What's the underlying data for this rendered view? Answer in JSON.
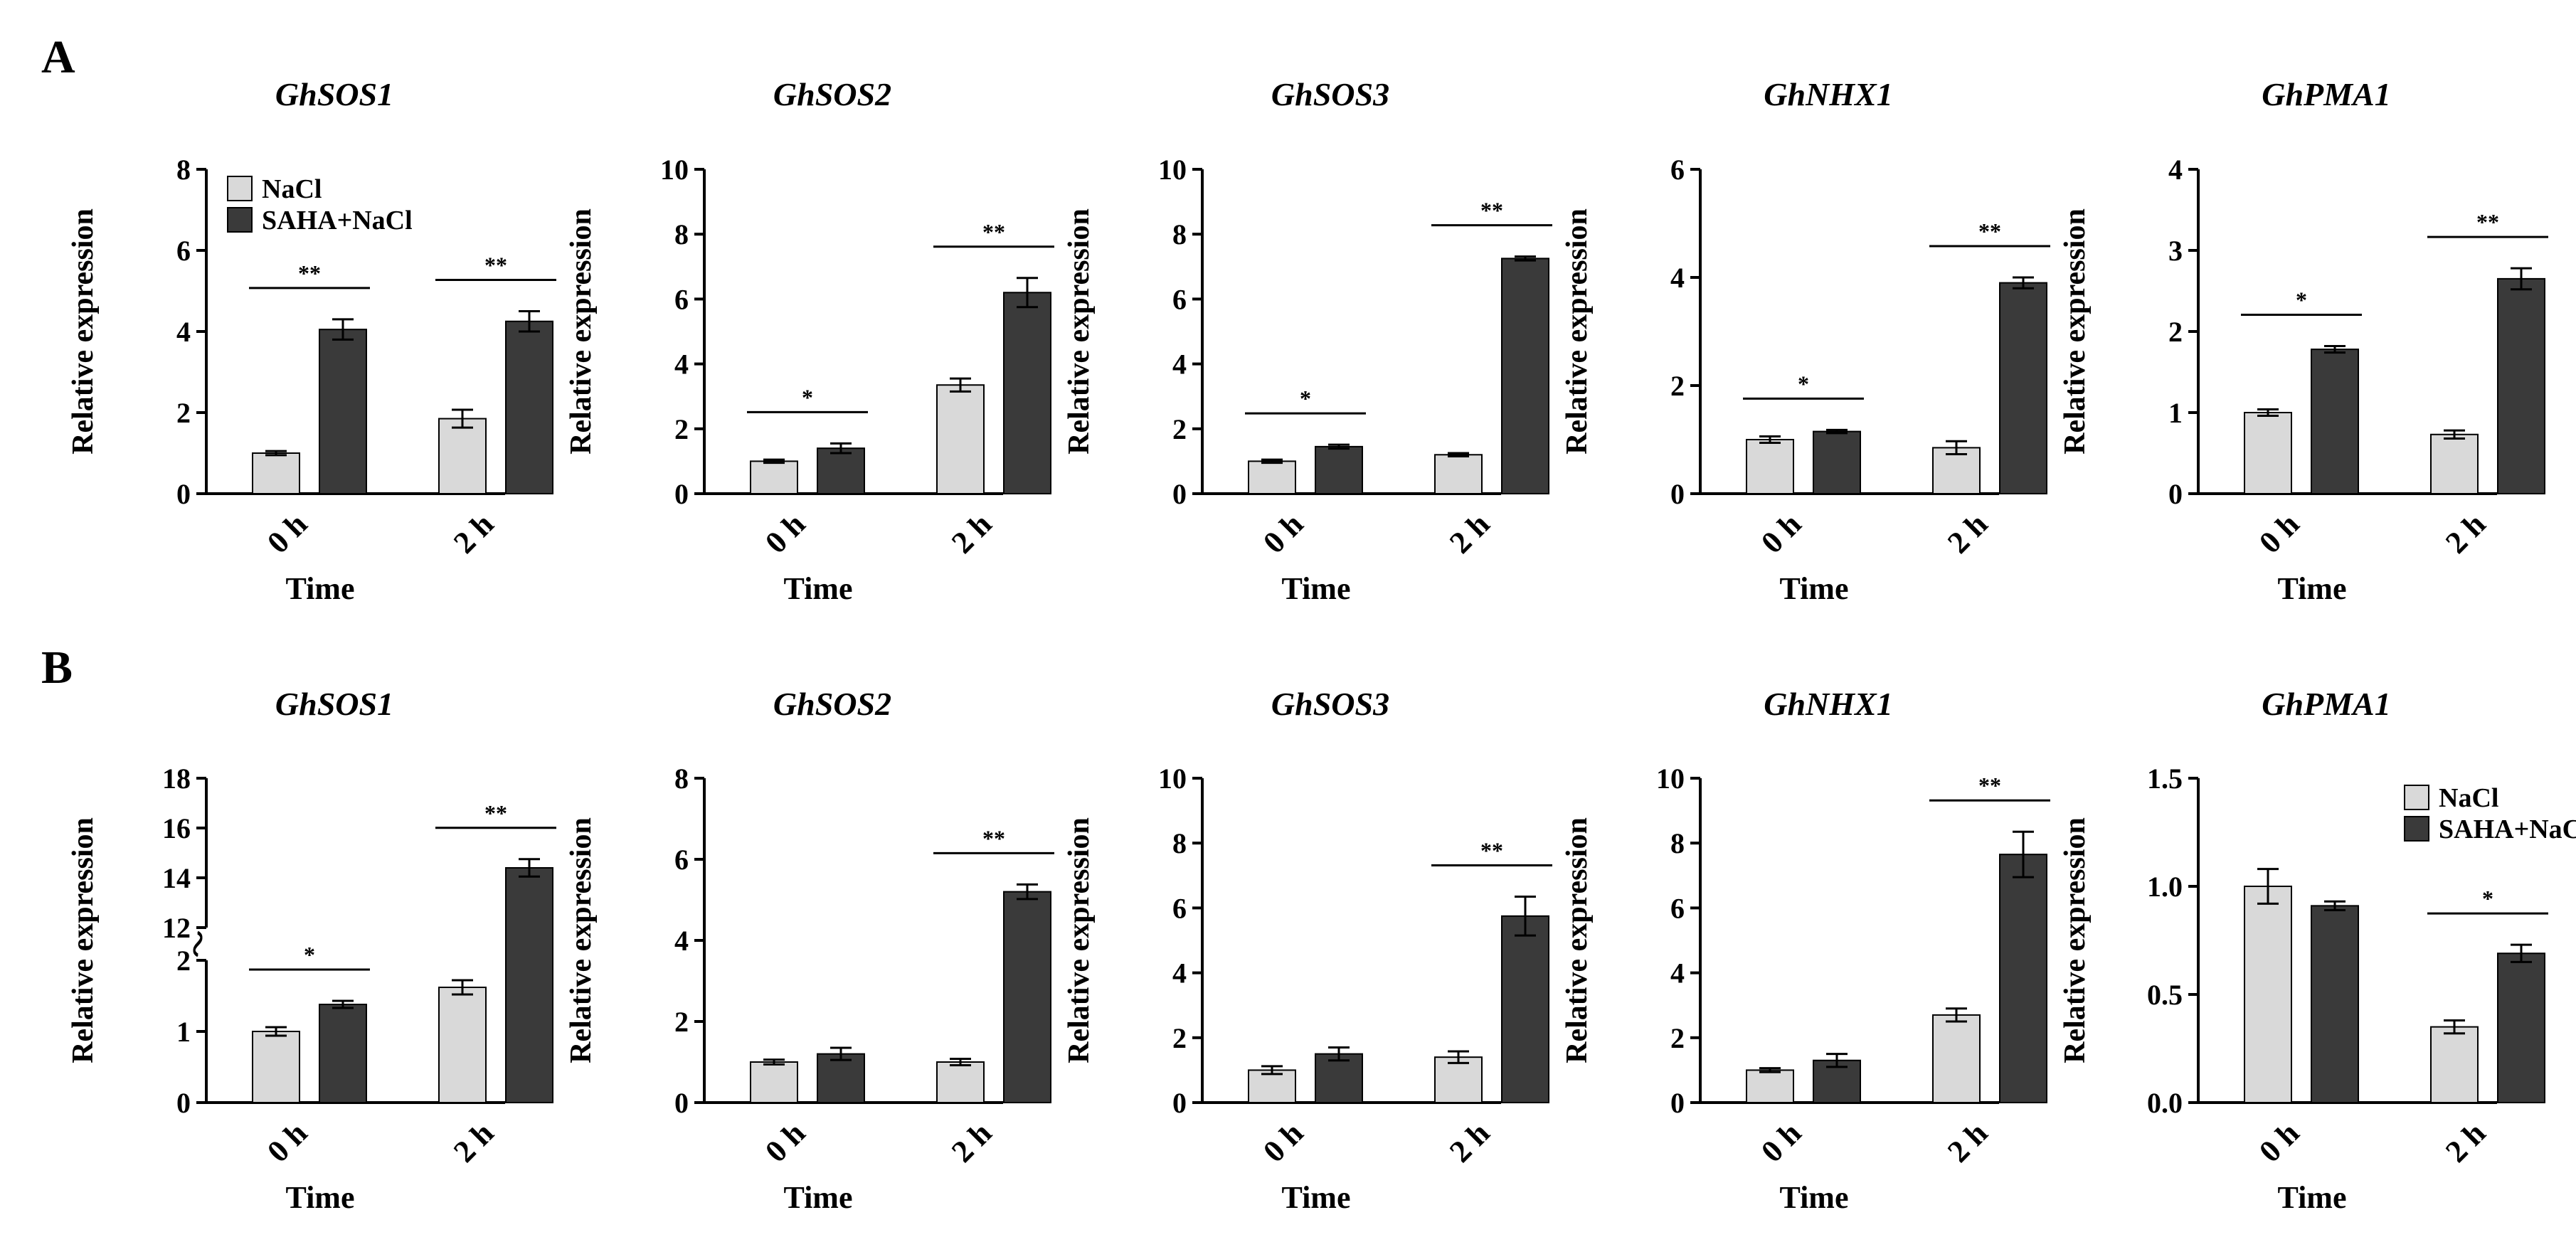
{
  "chart_data": {
    "type": "bar",
    "panel_labels": [
      "A",
      "B"
    ],
    "legend": [
      {
        "name": "NaCl",
        "color": "#d9d9d9"
      },
      {
        "name": "SAHA+NaCl",
        "color": "#3a3a3a"
      }
    ],
    "common": {
      "categories": [
        "0 h",
        "2 h"
      ],
      "xlabel": "Time",
      "ylabel": "Relative expression"
    },
    "panels": [
      {
        "row": 0,
        "col": 0,
        "title": "GhSOS1",
        "legend": "top-left",
        "yaxis": {
          "min": 0,
          "max": 8,
          "ticks": [
            0,
            2,
            4,
            6,
            8
          ],
          "tick_labels": [
            "0",
            "2",
            "4",
            "6",
            "8"
          ]
        },
        "series": [
          {
            "name": "NaCl",
            "values": [
              1.0,
              1.85
            ],
            "errors": [
              0.05,
              0.22
            ]
          },
          {
            "name": "SAHA+NaCl",
            "values": [
              4.05,
              4.25
            ],
            "errors": [
              0.25,
              0.25
            ]
          }
        ],
        "significance": [
          "**",
          "**"
        ]
      },
      {
        "row": 0,
        "col": 1,
        "title": "GhSOS2",
        "yaxis": {
          "min": 0,
          "max": 10,
          "ticks": [
            0,
            2,
            4,
            6,
            8,
            10
          ],
          "tick_labels": [
            "0",
            "2",
            "4",
            "6",
            "8",
            "10"
          ]
        },
        "series": [
          {
            "name": "NaCl",
            "values": [
              1.0,
              3.35
            ],
            "errors": [
              0.05,
              0.2
            ]
          },
          {
            "name": "SAHA+NaCl",
            "values": [
              1.4,
              6.2
            ],
            "errors": [
              0.15,
              0.45
            ]
          }
        ],
        "significance": [
          "*",
          "**"
        ]
      },
      {
        "row": 0,
        "col": 2,
        "title": "GhSOS3",
        "yaxis": {
          "min": 0,
          "max": 10,
          "ticks": [
            0,
            2,
            4,
            6,
            8,
            10
          ],
          "tick_labels": [
            "0",
            "2",
            "4",
            "6",
            "8",
            "10"
          ]
        },
        "series": [
          {
            "name": "NaCl",
            "values": [
              1.0,
              1.2
            ],
            "errors": [
              0.05,
              0.05
            ]
          },
          {
            "name": "SAHA+NaCl",
            "values": [
              1.45,
              7.25
            ],
            "errors": [
              0.06,
              0.06
            ]
          }
        ],
        "significance": [
          "*",
          "**"
        ]
      },
      {
        "row": 0,
        "col": 3,
        "title": "GhNHX1",
        "yaxis": {
          "min": 0,
          "max": 6,
          "ticks": [
            0,
            2,
            4,
            6
          ],
          "tick_labels": [
            "0",
            "2",
            "4",
            "6"
          ]
        },
        "series": [
          {
            "name": "NaCl",
            "values": [
              1.0,
              0.85
            ],
            "errors": [
              0.06,
              0.12
            ]
          },
          {
            "name": "SAHA+NaCl",
            "values": [
              1.15,
              3.9
            ],
            "errors": [
              0.03,
              0.1
            ]
          }
        ],
        "significance": [
          "*",
          "**"
        ]
      },
      {
        "row": 0,
        "col": 4,
        "title": "GhPMA1",
        "yaxis": {
          "min": 0,
          "max": 4,
          "ticks": [
            0,
            1,
            2,
            3,
            4
          ],
          "tick_labels": [
            "0",
            "1",
            "2",
            "3",
            "4"
          ]
        },
        "series": [
          {
            "name": "NaCl",
            "values": [
              1.0,
              0.73
            ],
            "errors": [
              0.04,
              0.05
            ]
          },
          {
            "name": "SAHA+NaCl",
            "values": [
              1.78,
              2.65
            ],
            "errors": [
              0.04,
              0.13
            ]
          }
        ],
        "significance": [
          "*",
          "**"
        ]
      },
      {
        "row": 1,
        "col": 0,
        "title": "GhSOS1",
        "broken_axis": true,
        "yaxis": {
          "lower": [
            0,
            2
          ],
          "upper": [
            12,
            18
          ],
          "ticks": [
            0,
            1,
            2,
            12,
            14,
            16,
            18
          ],
          "tick_labels": [
            "0",
            "1",
            "2",
            "12",
            "14",
            "16",
            "18"
          ]
        },
        "series": [
          {
            "name": "NaCl",
            "values": [
              1.0,
              1.62
            ],
            "errors": [
              0.06,
              0.1
            ]
          },
          {
            "name": "SAHA+NaCl",
            "values": [
              1.38,
              14.4
            ],
            "errors": [
              0.05,
              0.35
            ]
          }
        ],
        "significance": [
          "*",
          "**"
        ]
      },
      {
        "row": 1,
        "col": 1,
        "title": "GhSOS2",
        "yaxis": {
          "min": 0,
          "max": 8,
          "ticks": [
            0,
            2,
            4,
            6,
            8
          ],
          "tick_labels": [
            "0",
            "2",
            "4",
            "6",
            "8"
          ]
        },
        "series": [
          {
            "name": "NaCl",
            "values": [
              1.0,
              1.0
            ],
            "errors": [
              0.06,
              0.08
            ]
          },
          {
            "name": "SAHA+NaCl",
            "values": [
              1.2,
              5.2
            ],
            "errors": [
              0.15,
              0.18
            ]
          }
        ],
        "significance": [
          null,
          "**"
        ]
      },
      {
        "row": 1,
        "col": 2,
        "title": "GhSOS3",
        "yaxis": {
          "min": 0,
          "max": 10,
          "ticks": [
            0,
            2,
            4,
            6,
            8,
            10
          ],
          "tick_labels": [
            "0",
            "2",
            "4",
            "6",
            "8",
            "10"
          ]
        },
        "series": [
          {
            "name": "NaCl",
            "values": [
              1.0,
              1.4
            ],
            "errors": [
              0.12,
              0.18
            ]
          },
          {
            "name": "SAHA+NaCl",
            "values": [
              1.5,
              5.75
            ],
            "errors": [
              0.2,
              0.6
            ]
          }
        ],
        "significance": [
          null,
          "**"
        ]
      },
      {
        "row": 1,
        "col": 3,
        "title": "GhNHX1",
        "yaxis": {
          "min": 0,
          "max": 10,
          "ticks": [
            0,
            2,
            4,
            6,
            8,
            10
          ],
          "tick_labels": [
            "0",
            "2",
            "4",
            "6",
            "8",
            "10"
          ]
        },
        "series": [
          {
            "name": "NaCl",
            "values": [
              1.0,
              2.7
            ],
            "errors": [
              0.06,
              0.2
            ]
          },
          {
            "name": "SAHA+NaCl",
            "values": [
              1.3,
              7.65
            ],
            "errors": [
              0.2,
              0.7
            ]
          }
        ],
        "significance": [
          null,
          "**"
        ]
      },
      {
        "row": 1,
        "col": 4,
        "title": "GhPMA1",
        "legend": "top-right",
        "yaxis": {
          "min": 0,
          "max": 1.5,
          "ticks": [
            0,
            0.5,
            1.0,
            1.5
          ],
          "tick_labels": [
            "0.0",
            "0.5",
            "1.0",
            "1.5"
          ]
        },
        "series": [
          {
            "name": "NaCl",
            "values": [
              1.0,
              0.35
            ],
            "errors": [
              0.08,
              0.03
            ]
          },
          {
            "name": "SAHA+NaCl",
            "values": [
              0.91,
              0.69
            ],
            "errors": [
              0.02,
              0.04
            ]
          }
        ],
        "significance": [
          null,
          "*"
        ]
      }
    ]
  }
}
